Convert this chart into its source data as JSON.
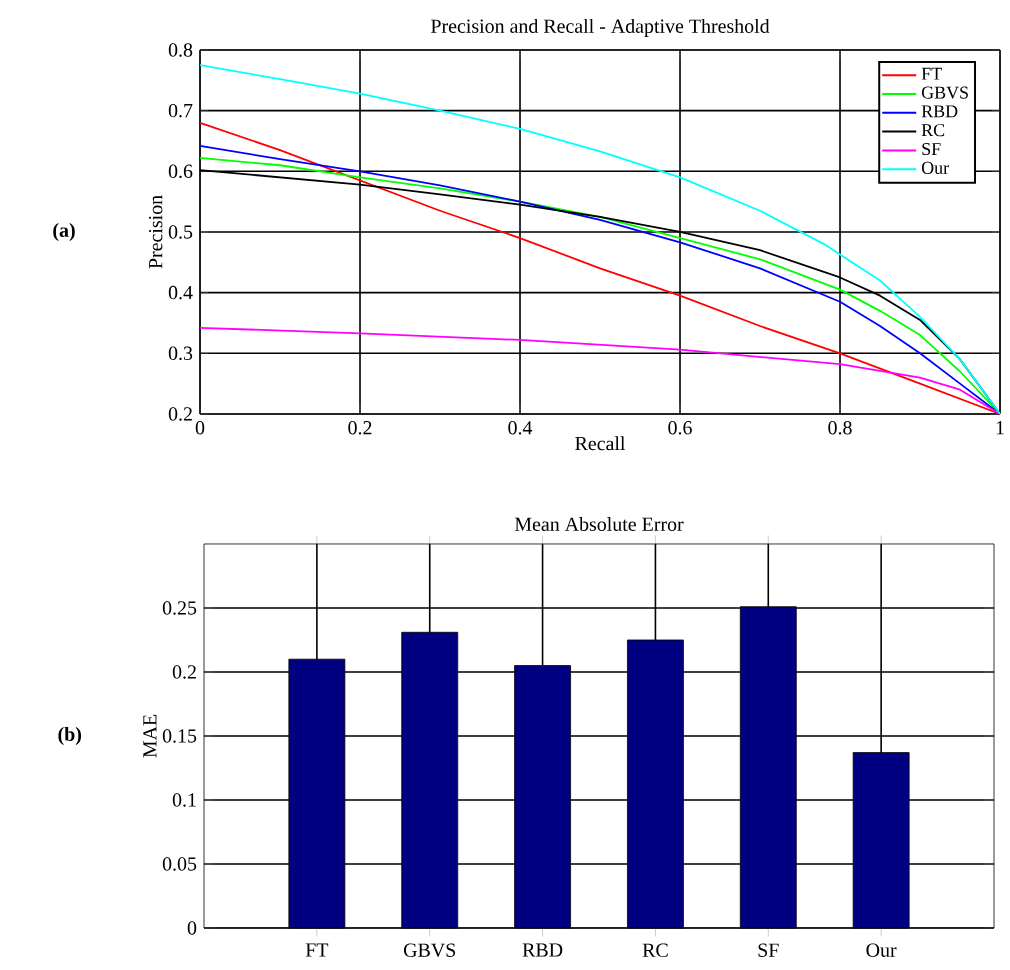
{
  "chart_data": [
    {
      "type": "line",
      "title": "Precision and Recall - Adaptive Threshold",
      "xlabel": "Recall",
      "ylabel": "Precision",
      "annotations": [
        "(a)"
      ],
      "xlim": [
        0,
        1
      ],
      "ylim": [
        0.2,
        0.8
      ],
      "xticks": [
        0,
        0.2,
        0.4,
        0.6,
        0.8,
        1
      ],
      "yticks": [
        0.2,
        0.3,
        0.4,
        0.5,
        0.6,
        0.7,
        0.8
      ],
      "grid": true,
      "legend": "top right",
      "series": [
        {
          "name": "FT",
          "color": "#ff0000",
          "x": [
            0,
            0.1,
            0.2,
            0.3,
            0.4,
            0.5,
            0.6,
            0.7,
            0.8,
            0.9,
            1
          ],
          "values": [
            0.68,
            0.635,
            0.585,
            0.535,
            0.49,
            0.44,
            0.395,
            0.345,
            0.3,
            0.25,
            0.2
          ]
        },
        {
          "name": "GBVS",
          "color": "#00ff00",
          "x": [
            0,
            0.1,
            0.2,
            0.3,
            0.4,
            0.5,
            0.6,
            0.7,
            0.8,
            0.85,
            0.9,
            0.95,
            1
          ],
          "values": [
            0.622,
            0.61,
            0.59,
            0.572,
            0.55,
            0.525,
            0.49,
            0.455,
            0.405,
            0.37,
            0.33,
            0.27,
            0.2
          ]
        },
        {
          "name": "RBD",
          "color": "#0000ff",
          "x": [
            0,
            0.1,
            0.2,
            0.3,
            0.4,
            0.5,
            0.6,
            0.7,
            0.8,
            0.85,
            0.9,
            0.95,
            1
          ],
          "values": [
            0.642,
            0.62,
            0.6,
            0.577,
            0.55,
            0.52,
            0.483,
            0.44,
            0.385,
            0.345,
            0.3,
            0.25,
            0.2
          ]
        },
        {
          "name": "RC",
          "color": "#000000",
          "x": [
            0,
            0.1,
            0.2,
            0.3,
            0.4,
            0.5,
            0.6,
            0.7,
            0.8,
            0.85,
            0.9,
            0.95,
            1
          ],
          "values": [
            0.602,
            0.59,
            0.578,
            0.562,
            0.545,
            0.525,
            0.5,
            0.47,
            0.425,
            0.395,
            0.355,
            0.29,
            0.2
          ]
        },
        {
          "name": "SF",
          "color": "#ff00ff",
          "x": [
            0,
            0.2,
            0.4,
            0.6,
            0.8,
            0.9,
            0.95,
            1
          ],
          "values": [
            0.342,
            0.333,
            0.322,
            0.306,
            0.282,
            0.26,
            0.24,
            0.2
          ]
        },
        {
          "name": "Our",
          "color": "#00ffff",
          "x": [
            0,
            0.1,
            0.2,
            0.3,
            0.4,
            0.5,
            0.6,
            0.7,
            0.78,
            0.85,
            0.9,
            0.95,
            1
          ],
          "values": [
            0.775,
            0.752,
            0.728,
            0.7,
            0.67,
            0.633,
            0.59,
            0.535,
            0.48,
            0.42,
            0.36,
            0.29,
            0.2
          ]
        }
      ]
    },
    {
      "type": "bar",
      "title": "Mean Absolute Error",
      "ylabel": "MAE",
      "annotations": [
        "(b)"
      ],
      "categories": [
        "FT",
        "GBVS",
        "RBD",
        "RC",
        "SF",
        "Our"
      ],
      "values": [
        0.21,
        0.231,
        0.205,
        0.225,
        0.251,
        0.137
      ],
      "color": "#000080",
      "ylim": [
        0,
        0.3
      ],
      "yticks": [
        0,
        0.05,
        0.1,
        0.15,
        0.2,
        0.25
      ],
      "grid": true
    }
  ]
}
